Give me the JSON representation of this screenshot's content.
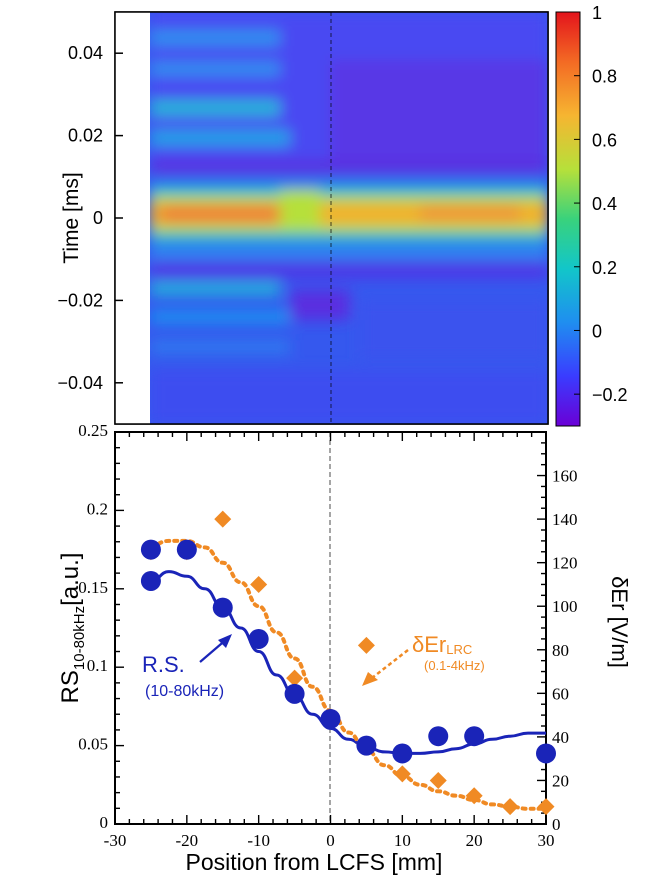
{
  "chart_data": [
    {
      "type": "heatmap",
      "ylabel": "Time [ms]",
      "yticks": [
        "0.04",
        "0.02",
        "0",
        "−0.02",
        "−0.04"
      ],
      "ytick_values": [
        0.04,
        0.02,
        0,
        -0.02,
        -0.04
      ],
      "ylim": [
        -0.05,
        0.05
      ],
      "xlim": [
        -30,
        30
      ],
      "data_start_x": -25,
      "colorbar": {
        "range": [
          -0.3,
          1
        ],
        "ticks": [
          "1",
          "0.8",
          "0.6",
          "0.4",
          "0.2",
          "0",
          "−0.2"
        ],
        "tick_values": [
          1,
          0.8,
          0.6,
          0.4,
          0.2,
          0,
          -0.2
        ],
        "colormap": [
          "#6a00d6",
          "#3a3cff",
          "#1f8ef0",
          "#12c6c9",
          "#39d27c",
          "#b6e03a",
          "#f6b531",
          "#f36a24",
          "#e3141c"
        ]
      },
      "reference_line_x": 0
    },
    {
      "type": "scatter",
      "xlabel": "Position from LCFS [mm]",
      "ylabel_main": "RS",
      "ylabel_sub": "10-80kHz",
      "ylabel_unit": "[a.u.]",
      "y2label": "δEr [V/m]",
      "xticks": [
        "-30",
        "-20",
        "-10",
        "0",
        "10",
        "20",
        "30"
      ],
      "xtick_values": [
        -30,
        -20,
        -10,
        0,
        10,
        20,
        30
      ],
      "xlim": [
        -30,
        30
      ],
      "yticks": [
        "0",
        "0.05",
        "0.1",
        "0.15",
        "0.2",
        "0.25"
      ],
      "ytick_values": [
        0,
        0.05,
        0.1,
        0.15,
        0.2,
        0.25
      ],
      "ylim": [
        0,
        0.25
      ],
      "y2ticks": [
        "0",
        "20",
        "40",
        "60",
        "80",
        "100",
        "120",
        "140",
        "160"
      ],
      "y2tick_values": [
        0,
        20,
        40,
        60,
        80,
        100,
        120,
        140,
        160
      ],
      "y2lim": [
        0,
        180
      ],
      "reference_line_x": 0,
      "series": [
        {
          "name": "R.S.",
          "sub": "(10-80kHz)",
          "axis": "left",
          "color": "#1a24b8",
          "marker": "circle",
          "x": [
            -25,
            -25,
            -20,
            -15,
            -10,
            -5,
            0,
            5,
            10,
            15,
            20,
            30
          ],
          "y": [
            0.175,
            0.155,
            0.175,
            0.138,
            0.118,
            0.083,
            0.067,
            0.05,
            0.045,
            0.056,
            0.056,
            0.045
          ],
          "fit_x": [
            -25,
            -22.5,
            -20,
            -17.5,
            -15,
            -12.5,
            -10,
            -7.5,
            -5,
            -2.5,
            0,
            2.5,
            5,
            7.5,
            10,
            12.5,
            15,
            17.5,
            20,
            22.5,
            25,
            27.5,
            30
          ],
          "fit_y": [
            0.155,
            0.161,
            0.158,
            0.15,
            0.138,
            0.125,
            0.11,
            0.095,
            0.082,
            0.07,
            0.061,
            0.054,
            0.049,
            0.046,
            0.045,
            0.045,
            0.046,
            0.048,
            0.051,
            0.054,
            0.056,
            0.058,
            0.058
          ]
        },
        {
          "name": "δEr",
          "name_sub": "LRC",
          "sub": "(0.1-4kHz)",
          "axis": "right",
          "color": "#f08a24",
          "marker": "diamond",
          "x": [
            -25,
            -20,
            -15,
            -10,
            -5,
            0,
            5,
            10,
            15,
            20,
            25,
            30
          ],
          "y": [
            125,
            125,
            140,
            110,
            67,
            49,
            82,
            23,
            20,
            13,
            8,
            8
          ],
          "fit_x": [
            -25,
            -22.5,
            -20,
            -17.5,
            -15,
            -12.5,
            -10,
            -7.5,
            -5,
            -2.5,
            0,
            2.5,
            5,
            7.5,
            10,
            12.5,
            15,
            17.5,
            20,
            22.5,
            25,
            27.5,
            30
          ],
          "fit_y": [
            128,
            130,
            130,
            127,
            120,
            111,
            100,
            88,
            76,
            63,
            52,
            42,
            34,
            27,
            22,
            18,
            15,
            13,
            11,
            9,
            8,
            7,
            7
          ]
        }
      ]
    }
  ]
}
